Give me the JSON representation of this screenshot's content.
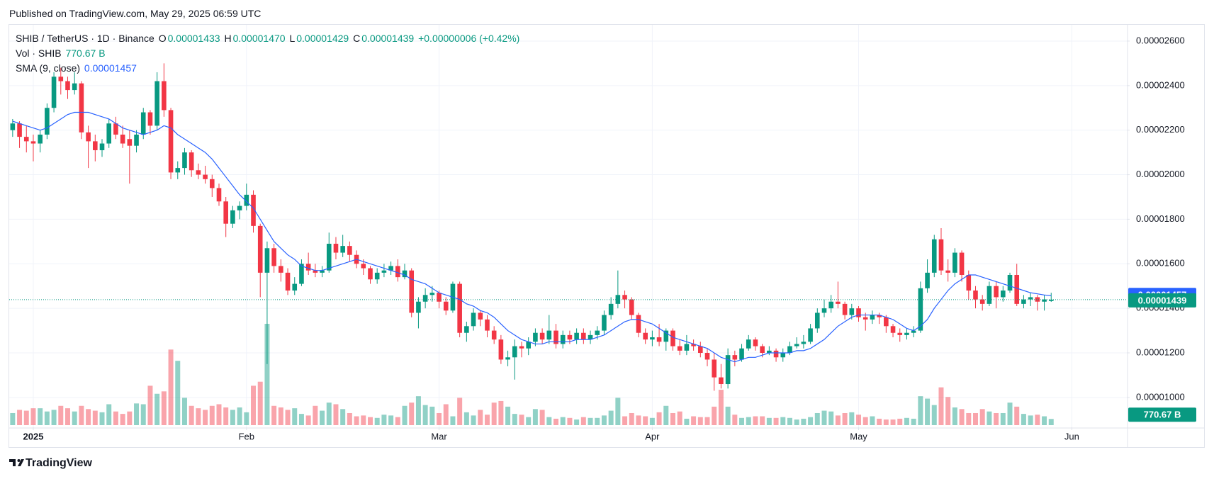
{
  "published": "Published on TradingView.com, May 29, 2025 06:59 UTC",
  "brand": "TradingView",
  "chart_data": {
    "type": "candlestick",
    "legend": {
      "symbol": "SHIB / TetherUS · 1D · Binance",
      "open_label": "O",
      "open": 1.433e-05,
      "high_label": "H",
      "high": {
        "value": 1.47e-05,
        "label": "0.00001470"
      },
      "low_label": "L",
      "low": 1.429e-05,
      "close_label": "C",
      "close": 1.439e-05,
      "change": "+0.00000006 (+0.42%)",
      "volume_label": "Vol · SHIB",
      "volume": {
        "value": 770.67,
        "label": "770.67 B"
      },
      "sma_label": "SMA (9, close)",
      "sma": 1.457e-05
    },
    "up_color": "#089981",
    "down_color": "#f23645",
    "sma_color": "#2962ff",
    "xlim": [
      -0.5,
      162
    ],
    "xticks": [
      {
        "value": 3,
        "label": "2025"
      },
      {
        "value": 34,
        "label": "Feb"
      },
      {
        "value": 62,
        "label": "Mar"
      },
      {
        "value": 93,
        "label": "Apr"
      },
      {
        "value": 123,
        "label": "May"
      },
      {
        "value": 154,
        "label": "Jun"
      }
    ],
    "ylim": [
      8.66e-06,
      2.673e-05
    ],
    "yticks": [
      {
        "value": 1e-05,
        "label": "0.00001000"
      },
      {
        "value": 1.2e-05,
        "label": "0.00001200"
      },
      {
        "value": 1.4e-05,
        "label": "0.00001400"
      },
      {
        "value": 1.6e-05,
        "label": "0.00001600"
      },
      {
        "value": 1.8e-05,
        "label": "0.00001800"
      },
      {
        "value": 2e-05,
        "label": "0.00002000"
      },
      {
        "value": 2.2e-05,
        "label": "0.00002200"
      },
      {
        "value": 2.4e-05,
        "label": "0.00002400"
      },
      {
        "value": 2.6e-05,
        "label": "0.00002600"
      }
    ],
    "grid": true,
    "open": [
      2.2e-05,
      2.23e-05,
      2.17e-05,
      2.15e-05,
      2.14e-05,
      2.18e-05,
      2.3e-05,
      2.44e-05,
      2.42e-05,
      2.38e-05,
      2.41e-05,
      2.19e-05,
      2.15e-05,
      2.11e-05,
      2.14e-05,
      2.23e-05,
      2.18e-05,
      2.16e-05,
      2.13e-05,
      2.18e-05,
      2.28e-05,
      2.22e-05,
      2.42e-05,
      2.29e-05,
      2.01e-05,
      2.03e-05,
      2.1e-05,
      2.02e-05,
      2e-05,
      1.98e-05,
      1.94e-05,
      1.88e-05,
      1.78e-05,
      1.84e-05,
      1.86e-05,
      1.91e-05,
      1.77e-05,
      1.56e-05,
      1.67e-05,
      1.59e-05,
      1.56e-05,
      1.48e-05,
      1.51e-05,
      1.6e-05,
      1.57e-05,
      1.56e-05,
      1.57e-05,
      1.69e-05,
      1.65e-05,
      1.68e-05,
      1.64e-05,
      1.6e-05,
      1.58e-05,
      1.53e-05,
      1.56e-05,
      1.57e-05,
      1.59e-05,
      1.54e-05,
      1.57e-05,
      1.38e-05,
      1.43e-05,
      1.46e-05,
      1.47e-05,
      1.43e-05,
      1.39e-05,
      1.51e-05,
      1.29e-05,
      1.32e-05,
      1.38e-05,
      1.35e-05,
      1.3e-05,
      1.26e-05,
      1.17e-05,
      1.18e-05,
      1.23e-05,
      1.22e-05,
      1.25e-05,
      1.29e-05,
      1.26e-05,
      1.3e-05,
      1.24e-05,
      1.28e-05,
      1.26e-05,
      1.29e-05,
      1.26e-05,
      1.28e-05,
      1.3e-05,
      1.37e-05,
      1.42e-05,
      1.46e-05,
      1.44e-05,
      1.37e-05,
      1.29e-05,
      1.26e-05,
      1.27e-05,
      1.25e-05,
      1.3e-05,
      1.23e-05,
      1.21e-05,
      1.24e-05,
      1.23e-05,
      1.2e-05,
      1.17e-05,
      1.09e-05,
      1.06e-05,
      1.19e-05,
      1.17e-05,
      1.22e-05,
      1.26e-05,
      1.23e-05,
      1.2e-05,
      1.21e-05,
      1.18e-05,
      1.2e-05,
      1.23e-05,
      1.24e-05,
      1.25e-05,
      1.31e-05,
      1.38e-05,
      1.4e-05,
      1.43e-05,
      1.42e-05,
      1.37e-05,
      1.4e-05,
      1.36e-05,
      1.35e-05,
      1.37e-05,
      1.36e-05,
      1.32e-05,
      1.29e-05,
      1.28e-05,
      1.29e-05,
      1.3e-05,
      1.49e-05,
      1.56e-05,
      1.71e-05,
      1.57e-05,
      1.56e-05,
      1.65e-05,
      1.55e-05,
      1.48e-05,
      1.44e-05,
      1.42e-05,
      1.5e-05,
      1.45e-05,
      1.48e-05,
      1.55e-05,
      1.42e-05,
      1.44e-05,
      1.45e-05,
      1.43e-05,
      1.433e-05
    ],
    "high": [
      2.25e-05,
      2.24e-05,
      2.22e-05,
      2.18e-05,
      2.2e-05,
      2.32e-05,
      2.46e-05,
      2.48e-05,
      2.44e-05,
      2.46e-05,
      2.42e-05,
      2.22e-05,
      2.18e-05,
      2.16e-05,
      2.25e-05,
      2.26e-05,
      2.22e-05,
      2.2e-05,
      2.2e-05,
      2.3e-05,
      2.29e-05,
      2.46e-05,
      2.5e-05,
      2.3e-05,
      2.06e-05,
      2.12e-05,
      2.11e-05,
      2.05e-05,
      2.04e-05,
      2e-05,
      1.96e-05,
      1.9e-05,
      1.86e-05,
      1.88e-05,
      1.96e-05,
      1.93e-05,
      1.78e-05,
      1.7e-05,
      1.69e-05,
      1.62e-05,
      1.58e-05,
      1.54e-05,
      1.62e-05,
      1.65e-05,
      1.6e-05,
      1.59e-05,
      1.74e-05,
      1.72e-05,
      1.73e-05,
      1.7e-05,
      1.66e-05,
      1.62e-05,
      1.59e-05,
      1.58e-05,
      1.6e-05,
      1.61e-05,
      1.62e-05,
      1.6e-05,
      1.58e-05,
      1.45e-05,
      1.49e-05,
      1.5e-05,
      1.48e-05,
      1.45e-05,
      1.52e-05,
      1.52e-05,
      1.34e-05,
      1.4e-05,
      1.39e-05,
      1.37e-05,
      1.32e-05,
      1.28e-05,
      1.21e-05,
      1.26e-05,
      1.25e-05,
      1.27e-05,
      1.31e-05,
      1.31e-05,
      1.37e-05,
      1.33e-05,
      1.3e-05,
      1.3e-05,
      1.31e-05,
      1.31e-05,
      1.3e-05,
      1.32e-05,
      1.39e-05,
      1.45e-05,
      1.57e-05,
      1.48e-05,
      1.45e-05,
      1.38e-05,
      1.31e-05,
      1.3e-05,
      1.33e-05,
      1.31e-05,
      1.31e-05,
      1.26e-05,
      1.28e-05,
      1.26e-05,
      1.25e-05,
      1.22e-05,
      1.2e-05,
      1.15e-05,
      1.22e-05,
      1.21e-05,
      1.24e-05,
      1.28e-05,
      1.27e-05,
      1.24e-05,
      1.23e-05,
      1.22e-05,
      1.22e-05,
      1.25e-05,
      1.27e-05,
      1.28e-05,
      1.33e-05,
      1.4e-05,
      1.44e-05,
      1.46e-05,
      1.52e-05,
      1.43e-05,
      1.42e-05,
      1.41e-05,
      1.38e-05,
      1.39e-05,
      1.38e-05,
      1.37e-05,
      1.33e-05,
      1.31e-05,
      1.31e-05,
      1.32e-05,
      1.52e-05,
      1.62e-05,
      1.73e-05,
      1.76e-05,
      1.62e-05,
      1.67e-05,
      1.66e-05,
      1.57e-05,
      1.5e-05,
      1.46e-05,
      1.52e-05,
      1.52e-05,
      1.5e-05,
      1.56e-05,
      1.6e-05,
      1.46e-05,
      1.47e-05,
      1.46e-05,
      1.46e-05,
      1.47e-05
    ],
    "low": [
      2.17e-05,
      2.12e-05,
      2.1e-05,
      2.06e-05,
      2.1e-05,
      2.16e-05,
      2.28e-05,
      2.36e-05,
      2.34e-05,
      2.36e-05,
      2.16e-05,
      2.03e-05,
      2.06e-05,
      2.08e-05,
      2.12e-05,
      2.16e-05,
      2.12e-05,
      1.96e-05,
      2.1e-05,
      2.16e-05,
      2.18e-05,
      2.2e-05,
      2.26e-05,
      1.98e-05,
      1.98e-05,
      2e-05,
      1.99e-05,
      1.98e-05,
      1.96e-05,
      1.9e-05,
      1.86e-05,
      1.72e-05,
      1.76e-05,
      1.8e-05,
      1.84e-05,
      1.74e-05,
      1.45e-05,
      1.15e-05,
      1.56e-05,
      1.52e-05,
      1.46e-05,
      1.46e-05,
      1.5e-05,
      1.55e-05,
      1.54e-05,
      1.54e-05,
      1.56e-05,
      1.62e-05,
      1.63e-05,
      1.61e-05,
      1.58e-05,
      1.55e-05,
      1.51e-05,
      1.51e-05,
      1.54e-05,
      1.55e-05,
      1.52e-05,
      1.53e-05,
      1.36e-05,
      1.31e-05,
      1.4e-05,
      1.43e-05,
      1.4e-05,
      1.37e-05,
      1.38e-05,
      1.27e-05,
      1.25e-05,
      1.3e-05,
      1.32e-05,
      1.27e-05,
      1.24e-05,
      1.15e-05,
      1.14e-05,
      1.08e-05,
      1.18e-05,
      1.19e-05,
      1.23e-05,
      1.24e-05,
      1.24e-05,
      1.22e-05,
      1.22e-05,
      1.24e-05,
      1.24e-05,
      1.24e-05,
      1.24e-05,
      1.26e-05,
      1.28e-05,
      1.35e-05,
      1.4e-05,
      1.4e-05,
      1.35e-05,
      1.27e-05,
      1.24e-05,
      1.23e-05,
      1.23e-05,
      1.21e-05,
      1.21e-05,
      1.19e-05,
      1.19e-05,
      1.21e-05,
      1.18e-05,
      1.14e-05,
      1.03e-05,
      1.04e-05,
      1.04e-05,
      1.14e-05,
      1.16e-05,
      1.21e-05,
      1.21e-05,
      1.18e-05,
      1.19e-05,
      1.16e-05,
      1.16e-05,
      1.19e-05,
      1.22e-05,
      1.22e-05,
      1.24e-05,
      1.29e-05,
      1.36e-05,
      1.38e-05,
      1.4e-05,
      1.35e-05,
      1.35e-05,
      1.34e-05,
      1.3e-05,
      1.33e-05,
      1.33e-05,
      1.29e-05,
      1.27e-05,
      1.25e-05,
      1.26e-05,
      1.27e-05,
      1.29e-05,
      1.47e-05,
      1.54e-05,
      1.55e-05,
      1.52e-05,
      1.54e-05,
      1.52e-05,
      1.44e-05,
      1.4e-05,
      1.39e-05,
      1.41e-05,
      1.4e-05,
      1.43e-05,
      1.47e-05,
      1.41e-05,
      1.4e-05,
      1.41e-05,
      1.39e-05,
      1.39e-05,
      1.429e-05
    ],
    "close": [
      2.23e-05,
      2.17e-05,
      2.15e-05,
      2.14e-05,
      2.18e-05,
      2.3e-05,
      2.44e-05,
      2.42e-05,
      2.38e-05,
      2.41e-05,
      2.19e-05,
      2.15e-05,
      2.11e-05,
      2.14e-05,
      2.23e-05,
      2.18e-05,
      2.14e-05,
      2.13e-05,
      2.18e-05,
      2.28e-05,
      2.22e-05,
      2.42e-05,
      2.29e-05,
      2.01e-05,
      2.03e-05,
      2.1e-05,
      2.02e-05,
      2e-05,
      1.98e-05,
      1.94e-05,
      1.88e-05,
      1.78e-05,
      1.84e-05,
      1.86e-05,
      1.91e-05,
      1.77e-05,
      1.56e-05,
      1.67e-05,
      1.59e-05,
      1.56e-05,
      1.48e-05,
      1.51e-05,
      1.6e-05,
      1.57e-05,
      1.56e-05,
      1.57e-05,
      1.69e-05,
      1.65e-05,
      1.68e-05,
      1.64e-05,
      1.6e-05,
      1.58e-05,
      1.53e-05,
      1.56e-05,
      1.57e-05,
      1.59e-05,
      1.54e-05,
      1.57e-05,
      1.38e-05,
      1.43e-05,
      1.46e-05,
      1.47e-05,
      1.43e-05,
      1.39e-05,
      1.51e-05,
      1.29e-05,
      1.32e-05,
      1.38e-05,
      1.35e-05,
      1.3e-05,
      1.26e-05,
      1.17e-05,
      1.18e-05,
      1.23e-05,
      1.22e-05,
      1.25e-05,
      1.29e-05,
      1.26e-05,
      1.3e-05,
      1.24e-05,
      1.28e-05,
      1.26e-05,
      1.29e-05,
      1.26e-05,
      1.28e-05,
      1.3e-05,
      1.37e-05,
      1.42e-05,
      1.46e-05,
      1.44e-05,
      1.37e-05,
      1.29e-05,
      1.26e-05,
      1.27e-05,
      1.25e-05,
      1.3e-05,
      1.23e-05,
      1.21e-05,
      1.24e-05,
      1.23e-05,
      1.2e-05,
      1.17e-05,
      1.09e-05,
      1.06e-05,
      1.19e-05,
      1.17e-05,
      1.22e-05,
      1.26e-05,
      1.23e-05,
      1.2e-05,
      1.21e-05,
      1.18e-05,
      1.2e-05,
      1.23e-05,
      1.24e-05,
      1.25e-05,
      1.31e-05,
      1.38e-05,
      1.4e-05,
      1.43e-05,
      1.42e-05,
      1.37e-05,
      1.4e-05,
      1.36e-05,
      1.35e-05,
      1.37e-05,
      1.36e-05,
      1.32e-05,
      1.29e-05,
      1.28e-05,
      1.29e-05,
      1.3e-05,
      1.49e-05,
      1.56e-05,
      1.71e-05,
      1.57e-05,
      1.56e-05,
      1.65e-05,
      1.55e-05,
      1.48e-05,
      1.44e-05,
      1.42e-05,
      1.5e-05,
      1.45e-05,
      1.48e-05,
      1.55e-05,
      1.42e-05,
      1.44e-05,
      1.45e-05,
      1.43e-05,
      1.44e-05,
      1.439e-05
    ],
    "volume": [
      1500,
      1900,
      1800,
      2100,
      2100,
      1700,
      1900,
      2400,
      2100,
      1700,
      2400,
      2000,
      1800,
      1600,
      2600,
      1700,
      1400,
      1700,
      2700,
      2600,
      4900,
      3900,
      4200,
      9400,
      8000,
      3400,
      2400,
      2100,
      1900,
      2400,
      2600,
      2200,
      1900,
      2200,
      1600,
      4900,
      5400,
      12600,
      2400,
      2200,
      1900,
      2100,
      1400,
      1200,
      2400,
      1800,
      2800,
      2600,
      2000,
      1500,
      1100,
      1200,
      1000,
      900,
      1300,
      1200,
      1000,
      2400,
      2800,
      3600,
      2500,
      2300,
      1500,
      2600,
      1100,
      3400,
      1600,
      1200,
      1900,
      1300,
      2800,
      3000,
      2300,
      1400,
      1300,
      1000,
      2000,
      1900,
      1000,
      800,
      1000,
      900,
      700,
      1000,
      900,
      900,
      1200,
      1800,
      3400,
      1100,
      1500,
      1200,
      1100,
      900,
      1600,
      2400,
      1500,
      1700,
      800,
      1100,
      1000,
      1000,
      2300,
      4400,
      2300,
      1300,
      900,
      1000,
      1100,
      1100,
      900,
      900,
      1000,
      900,
      700,
      800,
      1000,
      1500,
      1800,
      1700,
      1200,
      1500,
      1600,
      1300,
      1000,
      1100,
      800,
      700,
      700,
      800,
      900,
      800,
      3600,
      3300,
      2500,
      4700,
      3500,
      2200,
      2000,
      1500,
      1500,
      2000,
      1700,
      1500,
      1500,
      2800,
      2300,
      1400,
      1200,
      1300,
      1100,
      770.67
    ],
    "sma": [
      2.24e-05,
      2.23e-05,
      2.22e-05,
      2.21e-05,
      2.2e-05,
      2.21e-05,
      2.23e-05,
      2.25e-05,
      2.27e-05,
      2.28e-05,
      2.28e-05,
      2.28e-05,
      2.27e-05,
      2.26e-05,
      2.25e-05,
      2.23e-05,
      2.21e-05,
      2.2e-05,
      2.19e-05,
      2.18e-05,
      2.19e-05,
      2.2e-05,
      2.22e-05,
      2.21e-05,
      2.18e-05,
      2.16e-05,
      2.14e-05,
      2.12e-05,
      2.1e-05,
      2.07e-05,
      2.03e-05,
      1.99e-05,
      1.95e-05,
      1.91e-05,
      1.88e-05,
      1.85e-05,
      1.8e-05,
      1.75e-05,
      1.7e-05,
      1.67e-05,
      1.64e-05,
      1.62e-05,
      1.59e-05,
      1.58e-05,
      1.57e-05,
      1.57e-05,
      1.58e-05,
      1.59e-05,
      1.6e-05,
      1.61e-05,
      1.62e-05,
      1.61e-05,
      1.6e-05,
      1.59e-05,
      1.58e-05,
      1.57e-05,
      1.56e-05,
      1.55e-05,
      1.53e-05,
      1.52e-05,
      1.51e-05,
      1.49e-05,
      1.47e-05,
      1.46e-05,
      1.45e-05,
      1.44e-05,
      1.42e-05,
      1.41e-05,
      1.39e-05,
      1.38e-05,
      1.36e-05,
      1.33e-05,
      1.3e-05,
      1.28e-05,
      1.26e-05,
      1.25e-05,
      1.24e-05,
      1.24e-05,
      1.25e-05,
      1.25e-05,
      1.25e-05,
      1.25e-05,
      1.26e-05,
      1.26e-05,
      1.26e-05,
      1.27e-05,
      1.28e-05,
      1.3e-05,
      1.32e-05,
      1.34e-05,
      1.35e-05,
      1.35e-05,
      1.34e-05,
      1.33e-05,
      1.31e-05,
      1.29e-05,
      1.27e-05,
      1.26e-05,
      1.25e-05,
      1.24e-05,
      1.23e-05,
      1.22e-05,
      1.2e-05,
      1.18e-05,
      1.17e-05,
      1.16e-05,
      1.17e-05,
      1.18e-05,
      1.18e-05,
      1.19e-05,
      1.2e-05,
      1.2e-05,
      1.2e-05,
      1.2e-05,
      1.21e-05,
      1.21e-05,
      1.22e-05,
      1.24e-05,
      1.26e-05,
      1.29e-05,
      1.32e-05,
      1.34e-05,
      1.36e-05,
      1.37e-05,
      1.37e-05,
      1.37e-05,
      1.37e-05,
      1.36e-05,
      1.35e-05,
      1.33e-05,
      1.31e-05,
      1.3e-05,
      1.32e-05,
      1.35e-05,
      1.4e-05,
      1.44e-05,
      1.48e-05,
      1.51e-05,
      1.53e-05,
      1.55e-05,
      1.55e-05,
      1.54e-05,
      1.53e-05,
      1.52e-05,
      1.51e-05,
      1.5e-05,
      1.49e-05,
      1.48e-05,
      1.47e-05,
      1.465e-05,
      1.46e-05,
      1.457e-05
    ]
  }
}
